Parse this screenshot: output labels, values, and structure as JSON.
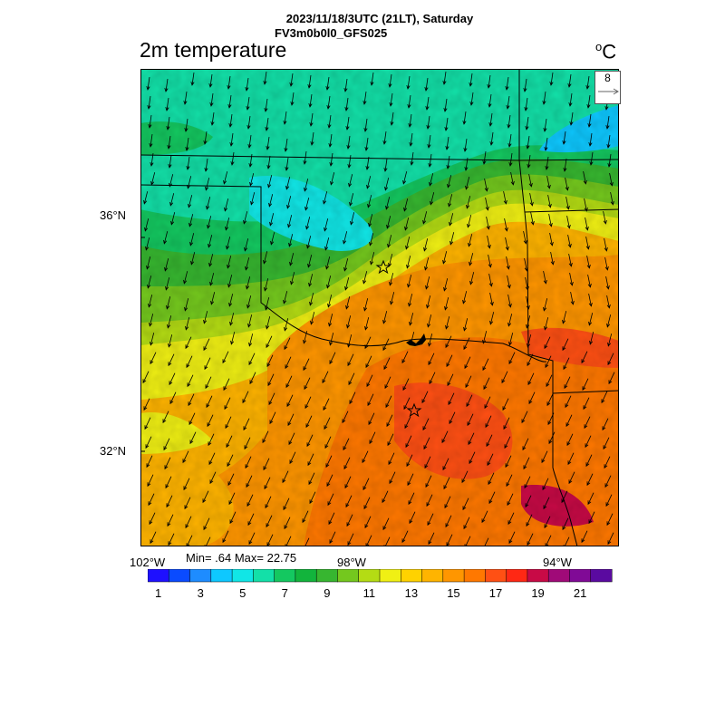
{
  "header": {
    "datetime": "2023/11/18/3UTC (21LT), Saturday",
    "model": "FV3m0b0l0_GFS025"
  },
  "plot": {
    "title": "2m temperature",
    "units_degree": "o",
    "units_letter": "C"
  },
  "reference_vector": {
    "label": "8"
  },
  "stats": {
    "text": "Min= .64 Max= 22.75"
  },
  "axes": {
    "lat_labels": [
      "36°N",
      "32°N"
    ],
    "lon_labels": [
      "102°W",
      "98°W",
      "94°W"
    ]
  },
  "colorbar": {
    "colors": [
      "#1e10ff",
      "#0a4bff",
      "#1e8cff",
      "#0ec8ff",
      "#11e6e6",
      "#13e0a8",
      "#14c860",
      "#12b43c",
      "#37b630",
      "#74c81e",
      "#b4dc14",
      "#f0f014",
      "#ffd200",
      "#ffb400",
      "#ff9600",
      "#ff7800",
      "#ff5014",
      "#ff2814",
      "#c80a46",
      "#a00a78",
      "#800a96",
      "#5a0aa0"
    ],
    "labels": [
      "1",
      "3",
      "5",
      "7",
      "9",
      "11",
      "13",
      "15",
      "17",
      "19",
      "21"
    ]
  },
  "markers": [
    {
      "name": "star-marker-north"
    },
    {
      "name": "star-marker-south"
    }
  ]
}
